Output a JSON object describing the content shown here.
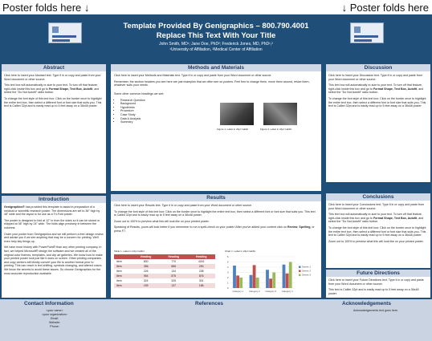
{
  "folds": {
    "left": "Poster folds here ↓",
    "right": "↓ Poster folds here"
  },
  "header": {
    "title_line1": "Template Provided By Genigraphics – 800.790.4001",
    "title_line2": "Replace This Text With Your Title",
    "authors": "John Smith, MD¹; Jane Doe, PhD²; Frederick Jones, MD, PhD¹,²",
    "affiliations": "¹University of Affiliation, ²Medical Center of Affiliation"
  },
  "abstract": {
    "heading": "Abstract",
    "p1": "Click here to insert your Abstract text. Type it in or copy and paste from your Word document or other source.",
    "p2a": "This text box will automatically re-size to your text. To turn off that feature, right-click inside this box and go to ",
    "p2b": "Format Shape, Text Box, Autofit",
    "p2c": ", and select the \"Do Not Autofit\" radio button.",
    "p3": "To change the font style of this text box: Click on the border once to highlight the entire text box, then select a different font or font size that suits you. This text is Calibri 32pt and is easily read up to 5 feet away on a 36x48 poster."
  },
  "introduction": {
    "heading": "Introduction",
    "p1a": "Genigraphics®",
    "p1b": " has provided this template to assist in preparation of a medical or scientific research poster. The dimensions are set to 36\" high by 48\" wide and the layout is for use as a Tri-Fold poster.",
    "p2": "The poster is designed to fold at 12\" in from the sides so it can be stored or shipped at 36\" high by 24\" wide. The folds align precisely in between the columns.",
    "p3": "Order your poster from Genigraphics and we will perform a free design review and advise you if we see anything that may be a concern for printing. We'll even help tidy things up.",
    "p4": "We have more history with PowerPoint® than any other printing company. In fact, we helped Microsoft® design the software and we created all of the original color themes, templates, and clip art galleries. We know how to make your printed poster look just like it does on screen. Other printing companies and copy centers will blindly convert your file to another format prior to printing. This can result in text shifting, symbols changing, and altered colors. We know the secrets to avoid these issues. So choose Genigraphics for the most accurate reproduction available."
  },
  "methods": {
    "heading": "Methods and Materials",
    "p1": "Click here to insert your Methods and Materials text. Type it in or copy and paste from your Word document or other source.",
    "p2": "Remember, the section headers you see here are just examples that we often see on posters. Feel free to change them, move them around, resize them, whatever suits your needs.",
    "p3": "Some other common headings we see:",
    "list": [
      "Research Question",
      "Background",
      "Hypothesis",
      "Procedure",
      "Case Study",
      "Data & Analysis",
      "Summary"
    ],
    "fig1_caption": "Figure 1. Label in 24pt Calibri.",
    "fig2_caption": "Figure 2. Label in 24pt Calibri."
  },
  "results": {
    "heading": "Results",
    "p1": "Click here to insert your Results text. Type it in or copy and paste from your Word document or other source.",
    "p2": "To change the font style of this text box: Click on the border once to highlight the entire text box, then select a different font or font size that suits you. This text is Calibri 32pt and is easily read up to 5 feet away on a 36x48 poster.",
    "p3": "Zoom out to 100% to preview what this will look like on your printed poster.",
    "p4a": "Speaking of Results, yours will look better if you remember to run a spell-check on your poster! After you've added your content click on ",
    "p4b": "Review",
    "p4c": ", ",
    "p4d": "Spelling",
    "p4e": ", or press F7.",
    "table_caption": "Table 1. Label in 24pt Calibri.",
    "table_headers": [
      "",
      "Heading",
      "Heading",
      "Heading"
    ],
    "table_rows": [
      [
        "Item",
        "800",
        "770",
        "4001"
      ],
      [
        "Item",
        "356",
        "856",
        "290"
      ],
      [
        "Item",
        "226",
        "134",
        "238"
      ],
      [
        "Item",
        "954",
        "875",
        "876"
      ],
      [
        "Item",
        "324",
        "325",
        "301"
      ],
      [
        "Item",
        "159",
        "137",
        "186"
      ]
    ],
    "chart_caption": "Chart 1. Label in 24pt Calibri."
  },
  "chart_data": {
    "type": "bar",
    "categories": [
      "Category 1",
      "Category 2",
      "Category 3",
      "Category 4"
    ],
    "series": [
      {
        "name": "Series 1",
        "values": [
          4.3,
          2.5,
          3.5,
          4.5
        ],
        "color": "#4f81bd"
      },
      {
        "name": "Series 2",
        "values": [
          2.4,
          4.4,
          1.8,
          2.8
        ],
        "color": "#c0504d"
      },
      {
        "name": "Series 3",
        "values": [
          2.0,
          2.0,
          3.0,
          5.0
        ],
        "color": "#9bbb59"
      }
    ],
    "ylim": [
      0,
      6
    ],
    "yticks": [
      0,
      1,
      2,
      3,
      4,
      5,
      6
    ],
    "legend": "right"
  },
  "discussion": {
    "heading": "Discussion",
    "p1": "Click here to insert your Discussion text. Type it in or copy and paste from your Word document or other source.",
    "p2a": "This text box will automatically re-size to your text. To turn off that feature, right-click inside this box and go to ",
    "p2b": "Format Shape, Text Box, Autofit",
    "p2c": ", and select the \"Do Not Autofit\" radio button.",
    "p3": "To change the font style of this text box: Click on the border once to highlight the entire text box, then select a different font or font size that suits you. This text is Calibri 32pt and is easily read up to 5 feet away on a 36x48 poster."
  },
  "conclusions": {
    "heading": "Conclusions",
    "p1": "Click here to insert your Conclusions text. Type it in or copy and paste from your Word document or other source.",
    "p2a": "This text box will automatically re-size to your text. To turn off that feature, right-click inside this box and go to ",
    "p2b": "Format Shape, Text Box, Autofit",
    "p2c": ", and select the \"Do Not Autofit\" radio button.",
    "p3": "To change the font style of this text box: Click on the border once to highlight the entire text box, then select a different font or font size that suits you. This text is Calibri 32pt and is easily read up to 5 feet away on a 36x48 poster.",
    "p4": "Zoom out to 100% to preview what this will look like on your printed poster."
  },
  "future": {
    "heading": "Future Directions",
    "p1": "Click here to insert your Future Directions text. Type it in or copy and paste from your Word document or other source.",
    "p2": "This text is Calibri 32pt and is easily read up to 5 feet away on a 36x48 poster."
  },
  "footer": {
    "contact_heading": "Contact Information",
    "contact_lines": [
      "<your name>",
      "<your organization>",
      "Email:",
      "Website:",
      "Phone:"
    ],
    "references_heading": "References",
    "ack_heading": "Acknowledgements",
    "ack_text": "Acknowledgements text goes here."
  },
  "colors": {
    "background": "#1f4e79",
    "section_header": "#cfd8e6",
    "footer": "#c9d3e1",
    "table_header": "#c0504d"
  }
}
